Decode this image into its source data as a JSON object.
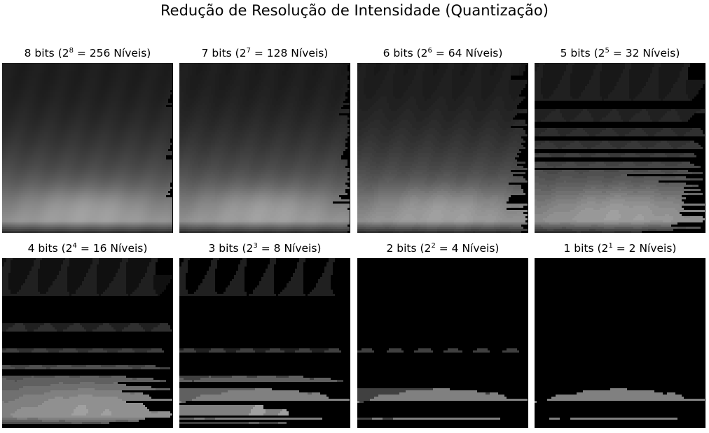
{
  "figure": {
    "title": "Redução de Resolução de Intensidade (Quantização)"
  },
  "panels": [
    {
      "bits": 8,
      "levels": 256,
      "label_prefix": "8 bits (2",
      "label_exp": "8",
      "label_eq": " = 256 Níveis)"
    },
    {
      "bits": 7,
      "levels": 128,
      "label_prefix": "7 bits (2",
      "label_exp": "7",
      "label_eq": " = 128 Níveis)"
    },
    {
      "bits": 6,
      "levels": 64,
      "label_prefix": "6 bits (2",
      "label_exp": "6",
      "label_eq": " = 64 Níveis)"
    },
    {
      "bits": 5,
      "levels": 32,
      "label_prefix": "5 bits (2",
      "label_exp": "5",
      "label_eq": " = 32 Níveis)"
    },
    {
      "bits": 4,
      "levels": 16,
      "label_prefix": "4 bits (2",
      "label_exp": "4",
      "label_eq": " = 16 Níveis)"
    },
    {
      "bits": 3,
      "levels": 8,
      "label_prefix": "3 bits (2",
      "label_exp": "3",
      "label_eq": " = 8 Níveis)"
    },
    {
      "bits": 2,
      "levels": 4,
      "label_prefix": "2 bits (2",
      "label_exp": "2",
      "label_eq": " = 4 Níveis)"
    },
    {
      "bits": 1,
      "levels": 2,
      "label_prefix": "1 bits (2",
      "label_exp": "1",
      "label_eq": " = 2 Níveis)"
    }
  ]
}
